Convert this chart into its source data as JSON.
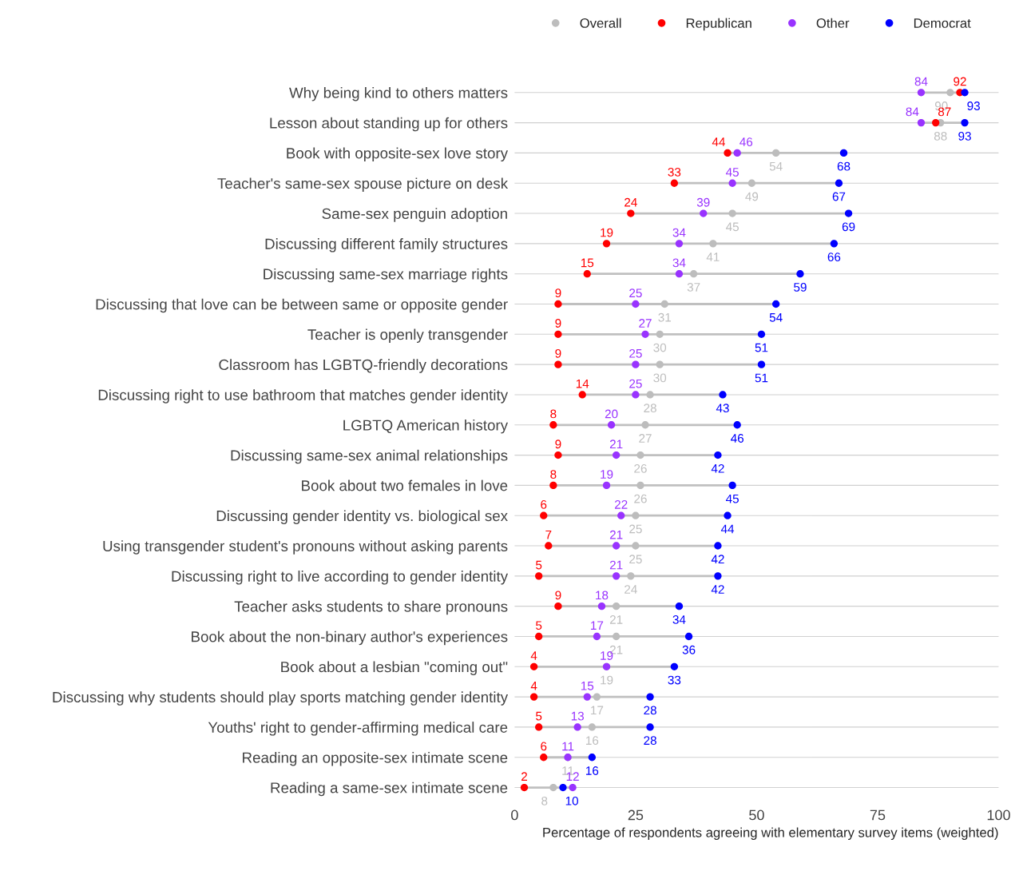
{
  "chart_data": {
    "type": "scatter",
    "orientation": "horizontal",
    "xlabel": "Percentage of respondents agreeing with elementary survey items (weighted)",
    "categories": [
      "Why being kind to others matters",
      "Lesson about standing up for others",
      "Book with opposite-sex love story",
      "Teacher's same-sex spouse picture on desk",
      "Same-sex penguin adoption",
      "Discussing different family structures",
      "Discussing same-sex marriage rights",
      "Discussing that love can be between same or opposite gender",
      "Teacher is openly transgender",
      "Classroom has LGBTQ-friendly decorations",
      "Discussing right to use bathroom that matches gender identity",
      "LGBTQ American history",
      "Discussing same-sex animal relationships",
      "Book about two females in love",
      "Discussing gender identity vs. biological sex",
      "Using transgender student's pronouns without asking parents",
      "Discussing right to live according to gender identity",
      "Teacher asks students to share pronouns",
      "Book about the non-binary author's experiences",
      "Book about a lesbian \"coming out\"",
      "Discussing why students should play sports matching gender identity",
      "Youths' right to gender-affirming medical care",
      "Reading an opposite-sex intimate scene",
      "Reading a same-sex intimate scene"
    ],
    "series": [
      {
        "name": "Overall",
        "color": "#bdbdbd",
        "values": [
          90,
          88,
          54,
          49,
          45,
          41,
          37,
          31,
          30,
          30,
          28,
          27,
          26,
          26,
          25,
          25,
          24,
          21,
          21,
          19,
          17,
          16,
          11,
          8
        ]
      },
      {
        "name": "Republican",
        "color": "#ff0000",
        "values": [
          92,
          87,
          44,
          33,
          24,
          19,
          15,
          9,
          9,
          9,
          14,
          8,
          9,
          8,
          6,
          7,
          5,
          9,
          5,
          4,
          4,
          5,
          6,
          2
        ]
      },
      {
        "name": "Other",
        "color": "#9933ff",
        "values": [
          84,
          84,
          46,
          45,
          39,
          34,
          34,
          25,
          27,
          25,
          25,
          20,
          21,
          19,
          22,
          21,
          21,
          18,
          17,
          19,
          15,
          13,
          11,
          12
        ]
      },
      {
        "name": "Democrat",
        "color": "#0000ff",
        "values": [
          93,
          93,
          68,
          67,
          69,
          66,
          59,
          54,
          51,
          51,
          43,
          46,
          42,
          45,
          44,
          42,
          42,
          34,
          36,
          33,
          28,
          28,
          16,
          10
        ]
      }
    ],
    "xlim": [
      0,
      100
    ],
    "xticks": [
      0,
      25,
      50,
      75,
      100
    ],
    "grid": "y",
    "legend": "top",
    "marker": "circle",
    "data_labels": true
  }
}
